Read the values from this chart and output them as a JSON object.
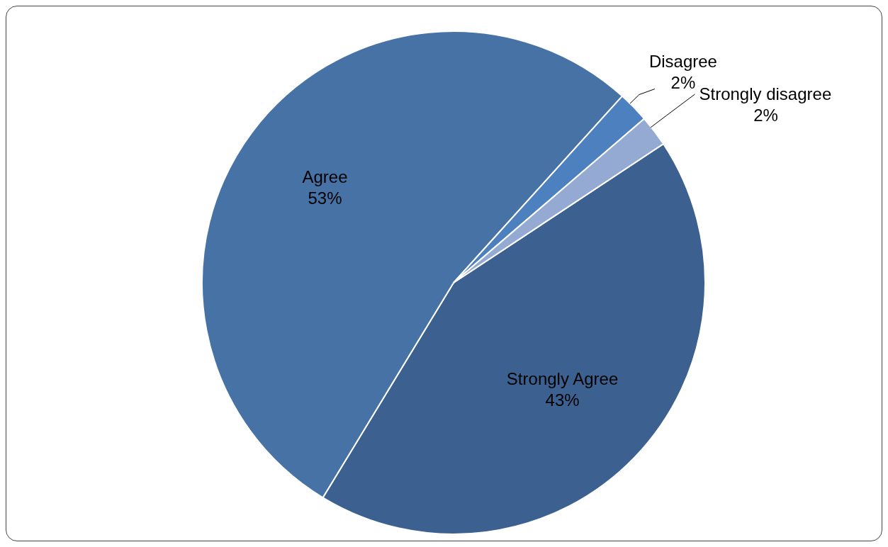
{
  "chart_data": {
    "type": "pie",
    "categories": [
      "Strongly Agree",
      "Agree",
      "Disagree",
      "Strongly disagree"
    ],
    "values": [
      43,
      53,
      2,
      2
    ],
    "value_labels": [
      "43%",
      "53%",
      "2%",
      "2%"
    ],
    "colors": [
      "#3c6190",
      "#4672a6",
      "#4d80bf",
      "#94aad2"
    ],
    "legend": false
  }
}
